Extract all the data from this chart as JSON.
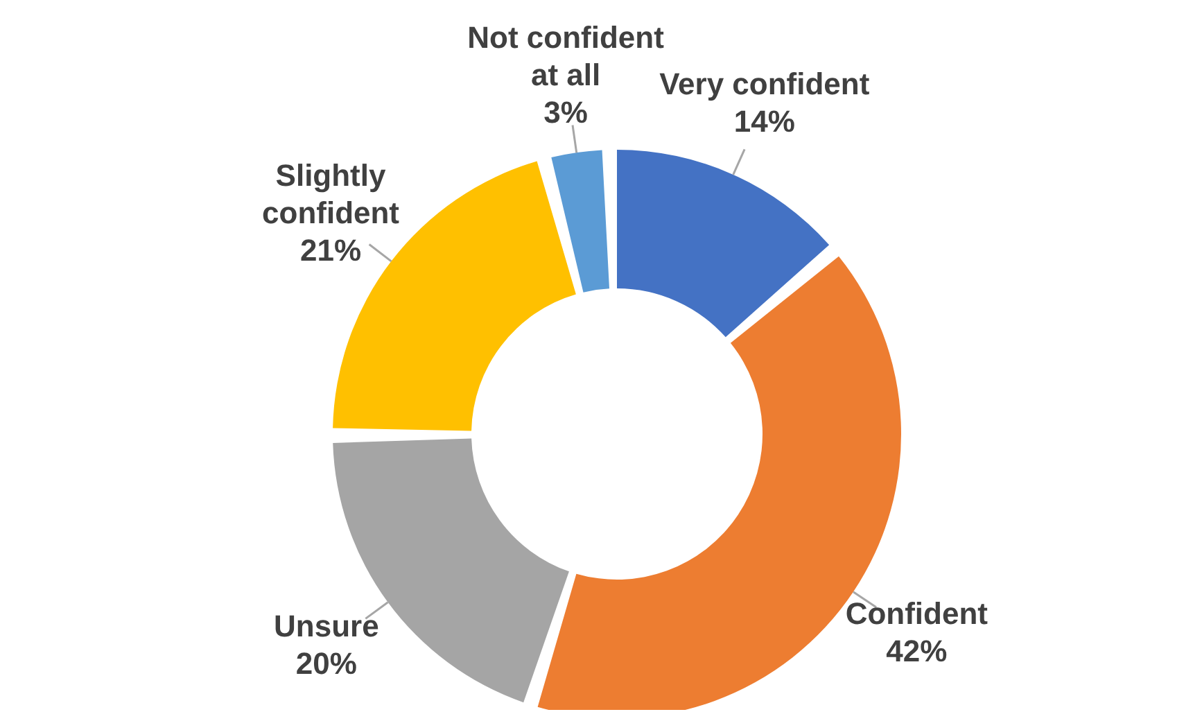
{
  "chart_data": {
    "type": "donut",
    "categories": [
      "Very confident",
      "Confident",
      "Unsure",
      "Slightly confident",
      "Not confident at all"
    ],
    "values": [
      14,
      42,
      20,
      21,
      3
    ],
    "value_labels": [
      "14%",
      "42%",
      "20%",
      "21%",
      "3%"
    ],
    "colors": [
      "#4472c4",
      "#ed7d31",
      "#a5a5a5",
      "#ffc000",
      "#5b9bd5"
    ],
    "legend": false
  }
}
